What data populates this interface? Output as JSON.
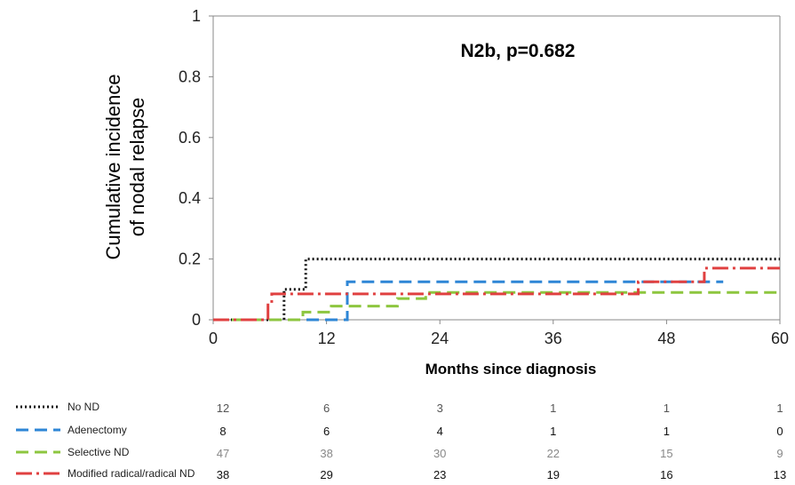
{
  "chart_data": {
    "type": "line",
    "title": "N2b, p=0.682",
    "xlabel": "Months since diagnosis",
    "ylabel_lines": [
      "Cumulative incidence",
      "of nodal relapse"
    ],
    "xlim": [
      0,
      60
    ],
    "ylim": [
      0,
      1
    ],
    "x_ticks": [
      "0",
      "12",
      "24",
      "36",
      "48",
      "60"
    ],
    "y_ticks": [
      "0",
      "0.2",
      "0.4",
      "0.6",
      "0.8",
      "1"
    ],
    "risk_table_times": [
      0,
      12,
      24,
      36,
      48,
      60
    ],
    "series": [
      {
        "name": "No ND",
        "color": "#111111",
        "style": "dotted",
        "points": [
          [
            0,
            0
          ],
          [
            7.5,
            0
          ],
          [
            7.5,
            0.1
          ],
          [
            9.8,
            0.1
          ],
          [
            9.8,
            0.2
          ],
          [
            60,
            0.2
          ]
        ],
        "at_risk": [
          "12",
          "6",
          "3",
          "1",
          "1",
          "1"
        ],
        "at_risk_color": "#555555"
      },
      {
        "name": "Adenectomy",
        "color": "#2e86d6",
        "style": "dashed",
        "points": [
          [
            0,
            0
          ],
          [
            14.2,
            0
          ],
          [
            14.2,
            0.125
          ],
          [
            54,
            0.125
          ]
        ],
        "at_risk": [
          "8",
          "6",
          "4",
          "1",
          "1",
          "0"
        ],
        "at_risk_color": "#111111"
      },
      {
        "name": "Selective ND",
        "color": "#8dc63f",
        "style": "dashed",
        "points": [
          [
            0,
            0
          ],
          [
            9.5,
            0
          ],
          [
            9.5,
            0.025
          ],
          [
            12.5,
            0.025
          ],
          [
            12.5,
            0.045
          ],
          [
            19.5,
            0.045
          ],
          [
            19.5,
            0.07
          ],
          [
            22.5,
            0.07
          ],
          [
            22.5,
            0.09
          ],
          [
            60,
            0.09
          ]
        ],
        "at_risk": [
          "47",
          "38",
          "30",
          "22",
          "15",
          "9"
        ],
        "at_risk_color": "#888888"
      },
      {
        "name": "Modified radical/radical ND",
        "color": "#e04040",
        "style": "dashdot",
        "points": [
          [
            0,
            0
          ],
          [
            5.8,
            0
          ],
          [
            5.8,
            0.055
          ],
          [
            6.2,
            0.055
          ],
          [
            6.2,
            0.085
          ],
          [
            45,
            0.085
          ],
          [
            45,
            0.125
          ],
          [
            52,
            0.125
          ],
          [
            52,
            0.17
          ],
          [
            60,
            0.17
          ]
        ],
        "at_risk": [
          "38",
          "29",
          "23",
          "19",
          "16",
          "13"
        ],
        "at_risk_color": "#111111"
      }
    ]
  }
}
